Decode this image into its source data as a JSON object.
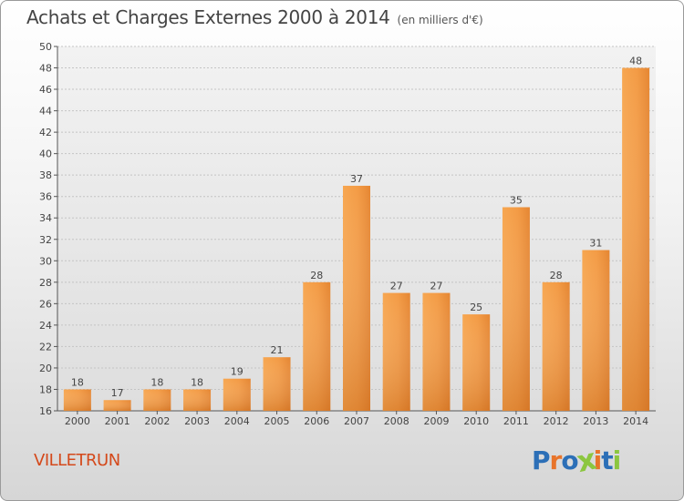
{
  "header": {
    "title": "Achats et Charges Externes 2000 à 2014",
    "subtitle": "(en milliers d'€)"
  },
  "footer": {
    "commune": "VILLETRUN",
    "logo_text": "Proxiti",
    "logo_colors": [
      "#2c6fb7",
      "#e8742a",
      "#2c6fb7",
      "#8cc63f",
      "#e8742a",
      "#2c6fb7",
      "#8cc63f"
    ]
  },
  "colors": {
    "bar_light": "#f7a650",
    "bar_dark": "#d8741e",
    "title": "#444444",
    "commune": "#d4491b"
  },
  "chart_data": {
    "type": "bar",
    "categories": [
      "2000",
      "2001",
      "2002",
      "2003",
      "2004",
      "2005",
      "2006",
      "2007",
      "2008",
      "2009",
      "2010",
      "2011",
      "2012",
      "2013",
      "2014"
    ],
    "values": [
      18,
      17,
      18,
      18,
      19,
      21,
      28,
      37,
      27,
      27,
      25,
      35,
      28,
      31,
      48
    ],
    "ylim": [
      16,
      50
    ],
    "yticks": [
      16,
      18,
      20,
      22,
      24,
      26,
      28,
      30,
      32,
      34,
      36,
      38,
      40,
      42,
      44,
      46,
      48,
      50
    ],
    "grid": true
  }
}
